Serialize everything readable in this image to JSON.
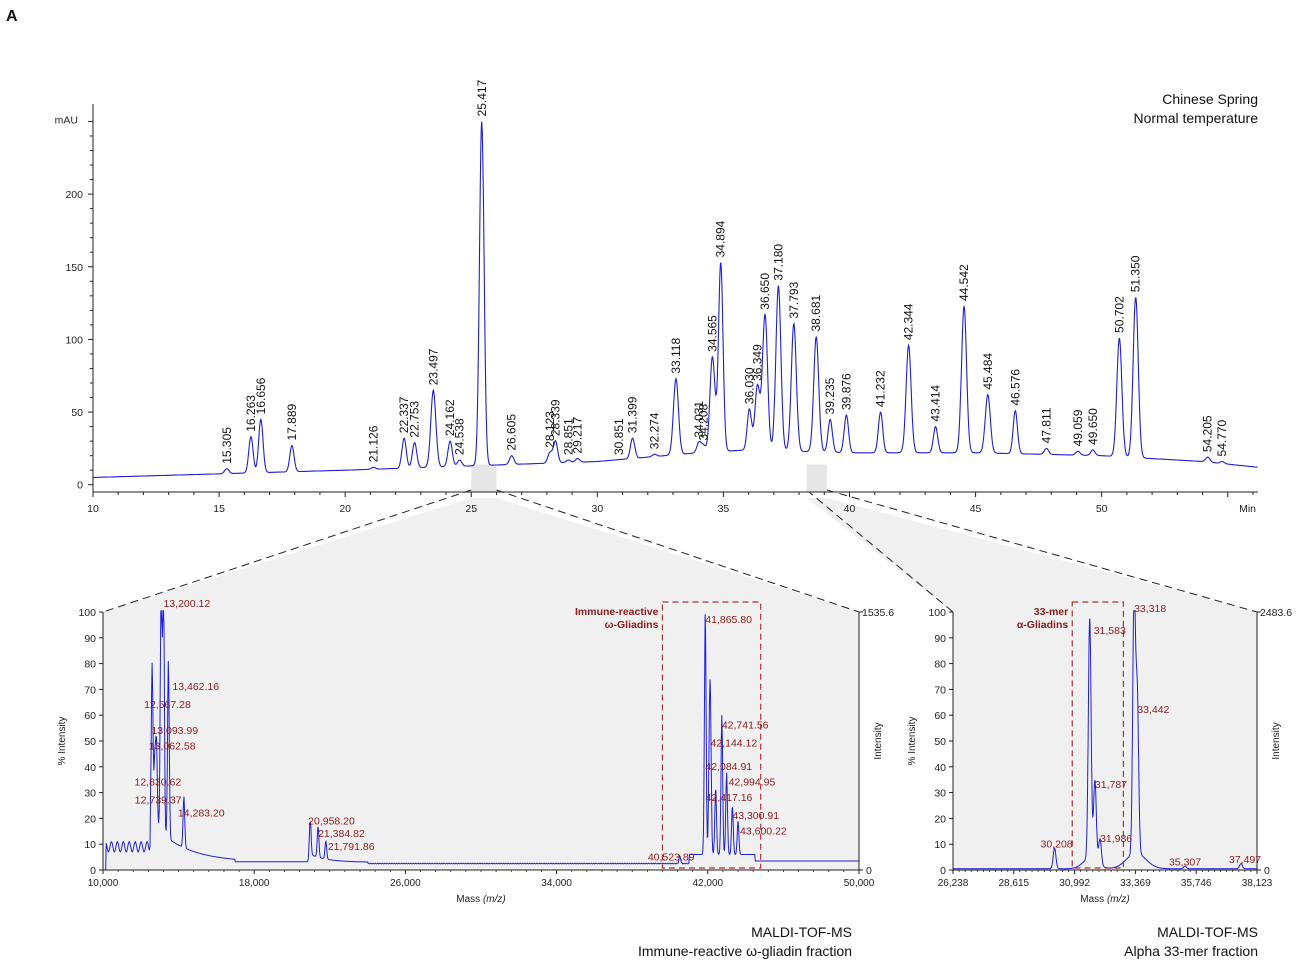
{
  "panel_label": "A",
  "captions": {
    "hplc": [
      "Chinese Spring",
      "Normal temperature"
    ],
    "ms1": [
      "MALDI-TOF-MS",
      "Immune-reactive ω-gliadin fraction"
    ],
    "ms2": [
      "MALDI-TOF-MS",
      "Alpha 33-mer fraction"
    ]
  },
  "chart_data": [
    {
      "type": "line",
      "id": "hplc",
      "xlabel": "Min",
      "ylabel": "mAU",
      "xlim": [
        10,
        56.2
      ],
      "ylim": [
        -5,
        262
      ],
      "xticks": [
        10,
        15,
        20,
        25,
        30,
        35,
        40,
        45,
        50
      ],
      "yticks": [
        0,
        50,
        100,
        150,
        200
      ],
      "baseline": [
        [
          10,
          5
        ],
        [
          14,
          7
        ],
        [
          20,
          10
        ],
        [
          25,
          13
        ],
        [
          30,
          16
        ],
        [
          34,
          22
        ],
        [
          36,
          24
        ],
        [
          40,
          22
        ],
        [
          45,
          22
        ],
        [
          50,
          20
        ],
        [
          54,
          16
        ],
        [
          56.2,
          12
        ]
      ],
      "peaks": [
        {
          "x": 15.305,
          "y": 11,
          "label": "15.305"
        },
        {
          "x": 16.263,
          "y": 33,
          "label": "16.263"
        },
        {
          "x": 16.656,
          "y": 45,
          "label": "16.656"
        },
        {
          "x": 17.889,
          "y": 27,
          "label": "17.889"
        },
        {
          "x": 21.126,
          "y": 12,
          "label": "21.126"
        },
        {
          "x": 22.337,
          "y": 32,
          "label": "22.337"
        },
        {
          "x": 22.753,
          "y": 29,
          "label": "22.753"
        },
        {
          "x": 23.497,
          "y": 65,
          "label": "23.497"
        },
        {
          "x": 24.162,
          "y": 30,
          "label": "24.162"
        },
        {
          "x": 24.538,
          "y": 17,
          "label": "24.538"
        },
        {
          "x": 25.417,
          "y": 250,
          "label": "25.417"
        },
        {
          "x": 26.605,
          "y": 20,
          "label": "26.605"
        },
        {
          "x": 28.123,
          "y": 22,
          "label": "28.123"
        },
        {
          "x": 28.339,
          "y": 30,
          "label": "28.339"
        },
        {
          "x": 28.851,
          "y": 17,
          "label": "28.851"
        },
        {
          "x": 29.217,
          "y": 18,
          "label": "29.217"
        },
        {
          "x": 30.851,
          "y": 17,
          "label": "30.851"
        },
        {
          "x": 31.399,
          "y": 32,
          "label": "31.399"
        },
        {
          "x": 32.274,
          "y": 21,
          "label": "32.274"
        },
        {
          "x": 33.118,
          "y": 73,
          "label": "33.118"
        },
        {
          "x": 34.031,
          "y": 29,
          "label": "34.031"
        },
        {
          "x": 34.208,
          "y": 27,
          "label": "34.208"
        },
        {
          "x": 34.565,
          "y": 88,
          "label": "34.565"
        },
        {
          "x": 34.894,
          "y": 153,
          "label": "34.894"
        },
        {
          "x": 36.03,
          "y": 52,
          "label": "36.030"
        },
        {
          "x": 36.349,
          "y": 68,
          "label": "36.349"
        },
        {
          "x": 36.65,
          "y": 117,
          "label": "36.650"
        },
        {
          "x": 37.18,
          "y": 137,
          "label": "37.180"
        },
        {
          "x": 37.793,
          "y": 111,
          "label": "37.793"
        },
        {
          "x": 38.681,
          "y": 102,
          "label": "38.681"
        },
        {
          "x": 39.235,
          "y": 45,
          "label": "39.235"
        },
        {
          "x": 39.876,
          "y": 48,
          "label": "39.876"
        },
        {
          "x": 41.232,
          "y": 50,
          "label": "41.232"
        },
        {
          "x": 42.344,
          "y": 96,
          "label": "42.344"
        },
        {
          "x": 43.414,
          "y": 40,
          "label": "43.414"
        },
        {
          "x": 44.542,
          "y": 123,
          "label": "44.542"
        },
        {
          "x": 45.484,
          "y": 62,
          "label": "45.484"
        },
        {
          "x": 46.576,
          "y": 51,
          "label": "46.576"
        },
        {
          "x": 47.811,
          "y": 25,
          "label": "47.811"
        },
        {
          "x": 49.059,
          "y": 23,
          "label": "49.059"
        },
        {
          "x": 49.65,
          "y": 24,
          "label": "49.650"
        },
        {
          "x": 50.702,
          "y": 101,
          "label": "50.702"
        },
        {
          "x": 51.35,
          "y": 129,
          "label": "51.350"
        },
        {
          "x": 54.205,
          "y": 19,
          "label": "54.205"
        },
        {
          "x": 54.77,
          "y": 16,
          "label": "54.770"
        }
      ],
      "fractions": [
        [
          25,
          26
        ],
        [
          38.3,
          39.1
        ]
      ]
    },
    {
      "type": "line",
      "id": "ms1",
      "xlabel": "Mass (m/z)",
      "ylabel": "% Intensity",
      "ylabel_right": "Intensity",
      "xlim": [
        10000,
        50000
      ],
      "ylim": [
        0,
        100
      ],
      "xticks": [
        10000,
        18000,
        26000,
        34000,
        42000,
        50000
      ],
      "xtick_labels": [
        "10,000",
        "18,000",
        "26,000",
        "34,000",
        "42,000",
        "50,000"
      ],
      "yticks": [
        0,
        10,
        20,
        30,
        40,
        50,
        60,
        70,
        80,
        90,
        100
      ],
      "right_top_label": "1535.6",
      "right_zero_label": "0",
      "box": {
        "x0": 39600,
        "x1": 44800,
        "label": [
          "Immune-reactive",
          "ω-Gliadins"
        ]
      },
      "peaks": [
        {
          "x": 12600,
          "y": 62,
          "label": "12,567.28"
        },
        {
          "x": 13200,
          "y": 100,
          "label": "13,200.12"
        },
        {
          "x": 13460,
          "y": 69,
          "label": "13,462.16"
        },
        {
          "x": 13090,
          "y": 52,
          "label": "13,093.99"
        },
        {
          "x": 13060,
          "y": 46,
          "label": "13,062.58"
        },
        {
          "x": 12830,
          "y": 32,
          "label": "12,830.62"
        },
        {
          "x": 12740,
          "y": 25,
          "label": "12,739.37"
        },
        {
          "x": 14280,
          "y": 20,
          "label": "14,283.20"
        },
        {
          "x": 20960,
          "y": 16,
          "label": "20,958.20"
        },
        {
          "x": 21380,
          "y": 12,
          "label": "21,384.82"
        },
        {
          "x": 21790,
          "y": 7,
          "label": "21,791.86"
        },
        {
          "x": 40520,
          "y": 3,
          "label": "40,523.89"
        },
        {
          "x": 41866,
          "y": 95,
          "label": "41,865.80"
        },
        {
          "x": 42144,
          "y": 47,
          "label": "42,144.12"
        },
        {
          "x": 42742,
          "y": 54,
          "label": "42,741.56"
        },
        {
          "x": 42085,
          "y": 38,
          "label": "42,084.91"
        },
        {
          "x": 42995,
          "y": 32,
          "label": "42,994.95"
        },
        {
          "x": 42417,
          "y": 26,
          "label": "42,417.16"
        },
        {
          "x": 43301,
          "y": 19,
          "label": "43,300.91"
        },
        {
          "x": 43600,
          "y": 13,
          "label": "43,600.22"
        }
      ]
    },
    {
      "type": "line",
      "id": "ms2",
      "xlabel": "Mass (m/z)",
      "ylabel": "% Intensity",
      "ylabel_right": "Intensity",
      "xlim": [
        26238,
        38123
      ],
      "ylim": [
        0,
        100
      ],
      "xticks": [
        26238,
        28615,
        30992,
        33369,
        35746,
        38123
      ],
      "xtick_labels": [
        "26,238",
        "28,615",
        "30,992",
        "33,369",
        "35,746",
        "38,123"
      ],
      "yticks": [
        0,
        10,
        20,
        30,
        40,
        50,
        60,
        70,
        80,
        90,
        100
      ],
      "right_top_label": "2483.6",
      "right_zero_label": "0",
      "box": {
        "x0": 30900,
        "x1": 32900,
        "label": [
          "33-mer",
          "α-Gliadins"
        ]
      },
      "peaks": [
        {
          "x": 30208,
          "y": 8,
          "label": "30,208"
        },
        {
          "x": 31583,
          "y": 93,
          "label": "31,583"
        },
        {
          "x": 31787,
          "y": 31,
          "label": "31,787"
        },
        {
          "x": 31986,
          "y": 10,
          "label": "31,986"
        },
        {
          "x": 33318,
          "y": 100,
          "label": "33,318"
        },
        {
          "x": 33442,
          "y": 60,
          "label": "33,442"
        },
        {
          "x": 35307,
          "y": 1,
          "label": "35,307"
        },
        {
          "x": 37497,
          "y": 2,
          "label": "37,497"
        }
      ]
    }
  ]
}
